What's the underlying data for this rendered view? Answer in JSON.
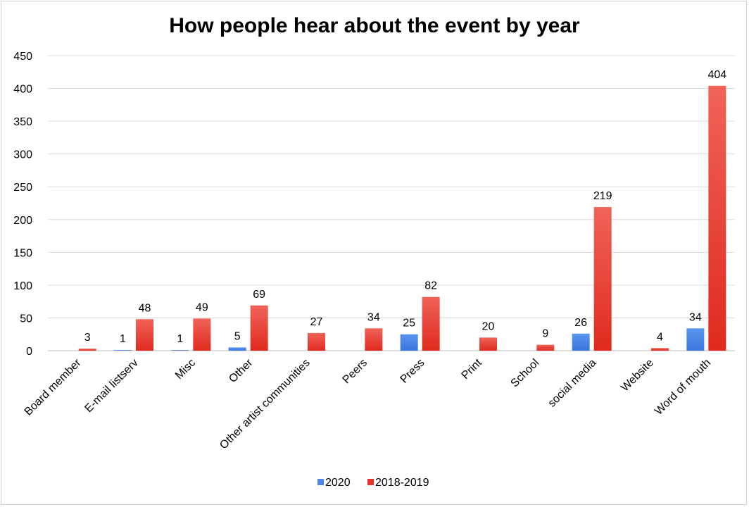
{
  "chart_data": {
    "type": "bar",
    "title": "How people hear about the event by year",
    "categories": [
      "Board member",
      "E-mail listserv",
      "Misc",
      "Other",
      "Other artist communities",
      "Peers",
      "Press",
      "Print",
      "School",
      "social media",
      "Website",
      "Word of mouth"
    ],
    "series": [
      {
        "name": "2020",
        "color": "#4a86e8",
        "values": [
          null,
          1,
          1,
          5,
          null,
          null,
          25,
          null,
          null,
          26,
          null,
          34
        ]
      },
      {
        "name": "2018-2019",
        "color": "#e8332a",
        "values": [
          3,
          48,
          49,
          69,
          27,
          34,
          82,
          20,
          9,
          219,
          4,
          404
        ]
      }
    ],
    "yticks": [
      0,
      50,
      100,
      150,
      200,
      250,
      300,
      350,
      400,
      450
    ],
    "ylim": [
      0,
      450
    ],
    "grid": true,
    "legend_position": "bottom"
  }
}
